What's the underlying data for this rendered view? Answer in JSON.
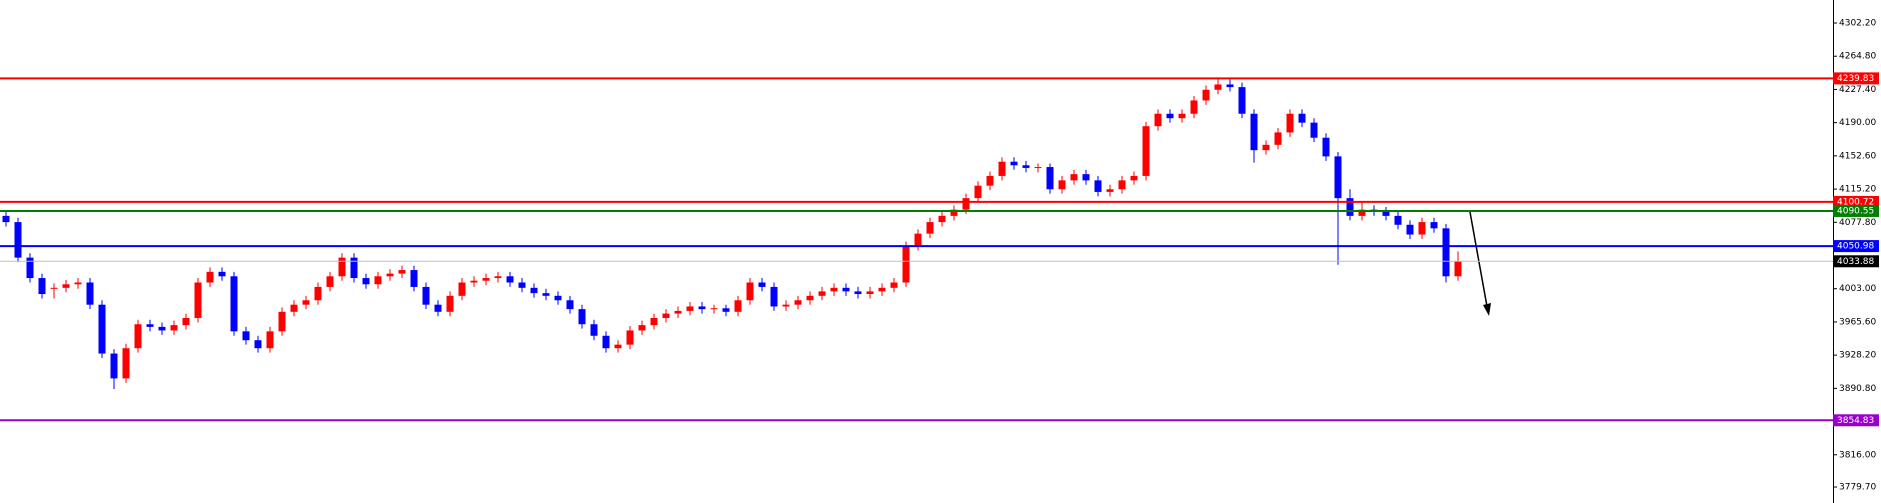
{
  "chart_data": {
    "type": "candlestick",
    "up_color": "#ff0000",
    "down_color": "#0000ff",
    "ylim": [
      3761.7,
      4328.1
    ],
    "yticks": [
      {
        "value": 4302.2,
        "label": "4302.20"
      },
      {
        "value": 4264.8,
        "label": "4264.80"
      },
      {
        "value": 4227.4,
        "label": "4227.40"
      },
      {
        "value": 4190,
        "label": "4190.00"
      },
      {
        "value": 4152.6,
        "label": "4152.60"
      },
      {
        "value": 4115.2,
        "label": "4115.20"
      },
      {
        "value": 4077.8,
        "label": "4077.80"
      },
      {
        "value": 4003,
        "label": "4003.00"
      },
      {
        "value": 3965.6,
        "label": "3965.60"
      },
      {
        "value": 3928.2,
        "label": "3928.20"
      },
      {
        "value": 3890.8,
        "label": "3890.80"
      },
      {
        "value": 3816,
        "label": "3816.00"
      },
      {
        "value": 3779.7,
        "label": "3779.70"
      }
    ],
    "levels": [
      {
        "value": 4239.83,
        "color": "#ff0000"
      },
      {
        "value": 4100.72,
        "color": "#ff0000"
      },
      {
        "value": 4090.55,
        "color": "#008000"
      },
      {
        "value": 4050.98,
        "color": "#0000ff"
      },
      {
        "value": 3854.83,
        "color": "#9900cc"
      },
      {
        "value": 4033.88,
        "color": "#c0c0c0"
      }
    ],
    "candles": [
      [
        4085,
        4090,
        4073,
        4078
      ],
      [
        4078,
        4083,
        4033,
        4038
      ],
      [
        4038,
        4043,
        4010,
        4015
      ],
      [
        4015,
        4020,
        3992,
        3997
      ],
      [
        4004,
        4009,
        3992,
        4004
      ],
      [
        4004,
        4013,
        3999,
        4008
      ],
      [
        4008,
        4015,
        4003,
        4010
      ],
      [
        4010,
        4015,
        3980,
        3985
      ],
      [
        3985,
        3990,
        3925,
        3930
      ],
      [
        3930,
        3935,
        3890,
        3902
      ],
      [
        3902,
        3941,
        3897,
        3936
      ],
      [
        3936,
        3968,
        3931,
        3963
      ],
      [
        3963,
        3968,
        3955,
        3960
      ],
      [
        3960,
        3965,
        3951,
        3956
      ],
      [
        3956,
        3967,
        3951,
        3962
      ],
      [
        3962,
        3975,
        3957,
        3970
      ],
      [
        3970,
        4015,
        3965,
        4010
      ],
      [
        4010,
        4027,
        4005,
        4022
      ],
      [
        4022,
        4027,
        4012,
        4017
      ],
      [
        4017,
        4022,
        3950,
        3955
      ],
      [
        3955,
        3960,
        3940,
        3945
      ],
      [
        3945,
        3950,
        3931,
        3936
      ],
      [
        3936,
        3960,
        3931,
        3955
      ],
      [
        3955,
        3982,
        3950,
        3977
      ],
      [
        3977,
        3990,
        3972,
        3985
      ],
      [
        3985,
        3995,
        3980,
        3990
      ],
      [
        3990,
        4010,
        3985,
        4005
      ],
      [
        4005,
        4022,
        4000,
        4017
      ],
      [
        4017,
        4043,
        4012,
        4038
      ],
      [
        4038,
        4043,
        4010,
        4015
      ],
      [
        4015,
        4020,
        4003,
        4008
      ],
      [
        4008,
        4022,
        4003,
        4017
      ],
      [
        4017,
        4025,
        4012,
        4020
      ],
      [
        4020,
        4029,
        4015,
        4024
      ],
      [
        4024,
        4029,
        4000,
        4005
      ],
      [
        4005,
        4010,
        3980,
        3985
      ],
      [
        3985,
        3990,
        3972,
        3977
      ],
      [
        3977,
        4000,
        3972,
        3995
      ],
      [
        3995,
        4015,
        3990,
        4010
      ],
      [
        4010,
        4017,
        4005,
        4012
      ],
      [
        4012,
        4020,
        4007,
        4015
      ],
      [
        4015,
        4022,
        4010,
        4017
      ],
      [
        4017,
        4022,
        4005,
        4010
      ],
      [
        4010,
        4015,
        3999,
        4004
      ],
      [
        4004,
        4009,
        3993,
        3998
      ],
      [
        3998,
        4003,
        3990,
        3995
      ],
      [
        3995,
        4000,
        3985,
        3990
      ],
      [
        3990,
        3995,
        3975,
        3980
      ],
      [
        3980,
        3985,
        3958,
        3963
      ],
      [
        3963,
        3968,
        3945,
        3950
      ],
      [
        3950,
        3955,
        3931,
        3936
      ],
      [
        3936,
        3945,
        3931,
        3940
      ],
      [
        3940,
        3961,
        3935,
        3956
      ],
      [
        3956,
        3967,
        3951,
        3962
      ],
      [
        3962,
        3975,
        3957,
        3970
      ],
      [
        3970,
        3980,
        3965,
        3975
      ],
      [
        3975,
        3983,
        3970,
        3978
      ],
      [
        3978,
        3988,
        3973,
        3983
      ],
      [
        3983,
        3988,
        3975,
        3980
      ],
      [
        3980,
        3985,
        3975,
        3981
      ],
      [
        3981,
        3985,
        3972,
        3977
      ],
      [
        3977,
        3995,
        3972,
        3990
      ],
      [
        3990,
        4015,
        3985,
        4010
      ],
      [
        4010,
        4015,
        4000,
        4005
      ],
      [
        4005,
        4010,
        3978,
        3983
      ],
      [
        3983,
        3990,
        3978,
        3985
      ],
      [
        3985,
        3995,
        3980,
        3990
      ],
      [
        3990,
        4000,
        3985,
        3995
      ],
      [
        3995,
        4005,
        3990,
        4000
      ],
      [
        4000,
        4009,
        3995,
        4004
      ],
      [
        4004,
        4009,
        3995,
        4000
      ],
      [
        4000,
        4005,
        3992,
        3997
      ],
      [
        3997,
        4005,
        3992,
        4000
      ],
      [
        4000,
        4009,
        3995,
        4004
      ],
      [
        4004,
        4015,
        3999,
        4010
      ],
      [
        4010,
        4056,
        4005,
        4051
      ],
      [
        4051,
        4070,
        4046,
        4065
      ],
      [
        4065,
        4083,
        4060,
        4078
      ],
      [
        4078,
        4090,
        4073,
        4085
      ],
      [
        4085,
        4097,
        4080,
        4092
      ],
      [
        4092,
        4110,
        4087,
        4105
      ],
      [
        4105,
        4124,
        4100,
        4119
      ],
      [
        4119,
        4135,
        4114,
        4130
      ],
      [
        4130,
        4151,
        4125,
        4146
      ],
      [
        4146,
        4151,
        4137,
        4142
      ],
      [
        4142,
        4147,
        4134,
        4139
      ],
      [
        4139,
        4144,
        4134,
        4140
      ],
      [
        4140,
        4144,
        4110,
        4115
      ],
      [
        4115,
        4130,
        4110,
        4125
      ],
      [
        4125,
        4137,
        4120,
        4132
      ],
      [
        4132,
        4137,
        4120,
        4125
      ],
      [
        4125,
        4130,
        4107,
        4112
      ],
      [
        4112,
        4120,
        4107,
        4115
      ],
      [
        4115,
        4130,
        4110,
        4125
      ],
      [
        4125,
        4135,
        4120,
        4130
      ],
      [
        4130,
        4191,
        4125,
        4186
      ],
      [
        4186,
        4205,
        4181,
        4200
      ],
      [
        4200,
        4205,
        4190,
        4195
      ],
      [
        4195,
        4205,
        4190,
        4200
      ],
      [
        4200,
        4220,
        4195,
        4215
      ],
      [
        4215,
        4232,
        4210,
        4227
      ],
      [
        4227,
        4241,
        4222,
        4233
      ],
      [
        4233,
        4240,
        4225,
        4230
      ],
      [
        4230,
        4235,
        4195,
        4200
      ],
      [
        4200,
        4205,
        4145,
        4159
      ],
      [
        4159,
        4170,
        4154,
        4165
      ],
      [
        4165,
        4184,
        4160,
        4179
      ],
      [
        4179,
        4205,
        4174,
        4200
      ],
      [
        4200,
        4205,
        4185,
        4190
      ],
      [
        4190,
        4195,
        4168,
        4173
      ],
      [
        4173,
        4178,
        4147,
        4152
      ],
      [
        4152,
        4157,
        4030,
        4105
      ],
      [
        4105,
        4115,
        4080,
        4085
      ],
      [
        4085,
        4100,
        4080,
        4092
      ],
      [
        4092,
        4097,
        4085,
        4090
      ],
      [
        4090,
        4095,
        4080,
        4085
      ],
      [
        4085,
        4090,
        4070,
        4075
      ],
      [
        4075,
        4080,
        4059,
        4064
      ],
      [
        4064,
        4083,
        4059,
        4078
      ],
      [
        4078,
        4083,
        4066,
        4071
      ],
      [
        4071,
        4076,
        4010,
        4017
      ],
      [
        4017,
        4045,
        4012,
        4034
      ]
    ]
  }
}
